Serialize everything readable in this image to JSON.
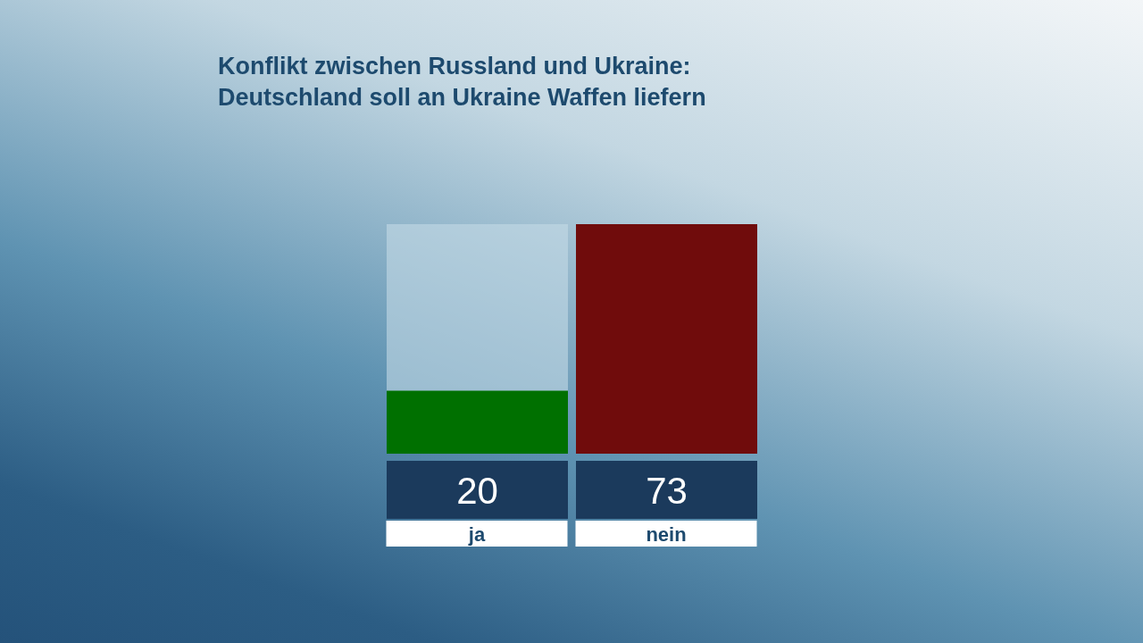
{
  "chart_data": {
    "type": "bar",
    "title": "Konflikt zwischen Russland und Ukraine:\nDeutschland soll an Ukraine Waffen liefern",
    "categories": [
      "ja",
      "nein"
    ],
    "values": [
      20,
      73
    ],
    "colors": [
      "#007000",
      "#700c0c"
    ],
    "data_labels": true
  }
}
